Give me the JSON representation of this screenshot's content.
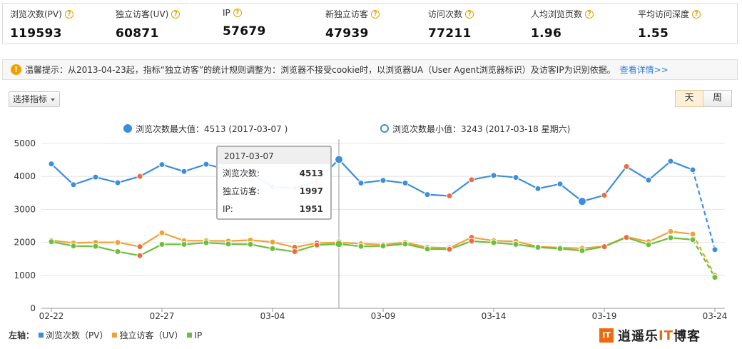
{
  "stats": [
    {
      "label": "浏览次数(PV)",
      "value": "119593"
    },
    {
      "label": "独立访客(UV)",
      "value": "60871"
    },
    {
      "label": "IP",
      "value": "57679"
    },
    {
      "label": "新独立访客",
      "value": "47939"
    },
    {
      "label": "访问次数",
      "value": "77211"
    },
    {
      "label": "人均浏览页数",
      "value": "1.96"
    },
    {
      "label": "平均访问深度",
      "value": "1.55"
    }
  ],
  "notice": {
    "icon": "!",
    "text": "温馨提示：从2013-04-23起，指标“独立访客”的统计规则调整为：浏览器不接受cookie时，以浏览器UA（User Agent浏览器标识）及访客IP为识别依据。",
    "link": "查看详情>>"
  },
  "controls": {
    "metric_select": "选择指标",
    "day": "天",
    "week": "周"
  },
  "chart_header": {
    "max_label": "浏览次数最大值：4513 (2017-03-07 )",
    "min_label": "浏览次数最小值：3243 (2017-03-18 星期六)"
  },
  "tooltip": {
    "date": "2017-03-07",
    "rows": [
      {
        "label": "浏览次数:",
        "value": "4513"
      },
      {
        "label": "独立访客:",
        "value": "1997"
      },
      {
        "label": "IP:",
        "value": "1951"
      }
    ]
  },
  "legend": {
    "prefix": "左轴：",
    "items": [
      "浏览次数（PV）",
      "独立访客（UV）",
      "IP"
    ]
  },
  "brand": {
    "icon": "IT",
    "text_a": "逍遥乐",
    "text_it": "IT",
    "text_b": "博客"
  },
  "colors": {
    "pv": "#3b8ede",
    "uv": "#f0a23a",
    "ip": "#6cbf3a",
    "weekend": "#f26a3c",
    "link": "#2b7bd5"
  },
  "chart_data": {
    "type": "line",
    "x": [
      "02-22",
      "02-23",
      "02-24",
      "02-25",
      "02-26",
      "02-27",
      "02-28",
      "03-01",
      "03-02",
      "03-03",
      "03-04",
      "03-05",
      "03-06",
      "03-07",
      "03-08",
      "03-09",
      "03-10",
      "03-11",
      "03-12",
      "03-13",
      "03-14",
      "03-15",
      "03-16",
      "03-17",
      "03-18",
      "03-19",
      "03-20",
      "03-21",
      "03-22",
      "03-23",
      "03-24"
    ],
    "x_tick_labels": [
      "02-22",
      "02-27",
      "03-04",
      "03-09",
      "03-14",
      "03-19",
      "03-24"
    ],
    "ylim": [
      0,
      5000
    ],
    "y_ticks": [
      0,
      1000,
      2000,
      3000,
      4000,
      5000
    ],
    "weekend_indices": [
      4,
      11,
      12,
      18,
      19,
      25,
      26
    ],
    "dashed_from_index": 29,
    "series": [
      {
        "name": "浏览次数（PV）",
        "values": [
          4380,
          3750,
          3980,
          3810,
          4000,
          4360,
          4150,
          4370,
          4200,
          4100,
          3680,
          3640,
          3850,
          4513,
          3800,
          3880,
          3800,
          3450,
          3410,
          3900,
          4030,
          3970,
          3630,
          3770,
          3243,
          3430,
          4300,
          3890,
          4460,
          4200,
          1780
        ]
      },
      {
        "name": "独立访客（UV）",
        "values": [
          2060,
          1980,
          2000,
          2000,
          1870,
          2290,
          2050,
          2050,
          2040,
          2070,
          2010,
          1850,
          1980,
          1997,
          1960,
          1930,
          2000,
          1850,
          1830,
          2150,
          2050,
          2030,
          1870,
          1840,
          1820,
          1880,
          2170,
          2020,
          2330,
          2250,
          1000
        ]
      },
      {
        "name": "IP",
        "values": [
          2020,
          1890,
          1880,
          1720,
          1600,
          1940,
          1940,
          1990,
          1950,
          1940,
          1810,
          1720,
          1920,
          1951,
          1880,
          1890,
          1950,
          1800,
          1790,
          2040,
          1990,
          1940,
          1850,
          1810,
          1750,
          1870,
          2150,
          1930,
          2140,
          2080,
          940
        ]
      }
    ]
  }
}
